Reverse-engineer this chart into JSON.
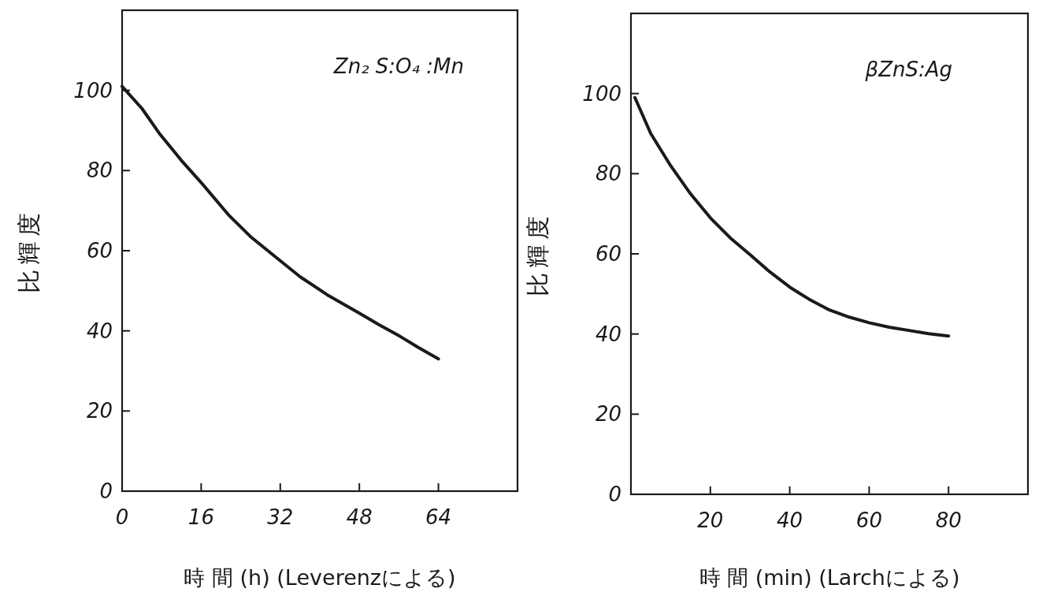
{
  "chart_data": [
    {
      "type": "line",
      "xlabel": "時 間 (h) (Leverenzによる)",
      "ylabel": "比輝度",
      "annotations": [
        "Zn₂ S:O₄ :Mn"
      ],
      "x": [
        0,
        4,
        7.7,
        12,
        16,
        21.5,
        26,
        32,
        36,
        41.5,
        48,
        52,
        56,
        60,
        64
      ],
      "values": [
        101,
        95.5,
        89,
        82.5,
        77,
        69,
        63.5,
        57.5,
        53.5,
        49,
        44.4,
        41.5,
        38.8,
        35.8,
        33
      ],
      "color": "#1a1a1a",
      "xlim": [
        0,
        80
      ],
      "ylim": [
        0,
        120
      ],
      "xticks": [
        0,
        16,
        32,
        48,
        64
      ],
      "yticks": [
        0,
        20,
        40,
        60,
        80,
        100
      ]
    },
    {
      "type": "line",
      "xlabel": "時 間 (min) (Larchによる)",
      "ylabel": "比輝度",
      "annotations": [
        "βZnS:Ag"
      ],
      "x": [
        1,
        5,
        10,
        15,
        20,
        25,
        30,
        35,
        40,
        45,
        50,
        55,
        60,
        65,
        70,
        75,
        80
      ],
      "values": [
        99,
        90,
        82,
        75,
        69,
        64,
        59.8,
        55.5,
        51.7,
        48.6,
        46,
        44.2,
        42.8,
        41.7,
        40.9,
        40.1,
        39.5
      ],
      "color": "#1a1a1a",
      "xlim": [
        0,
        100
      ],
      "ylim": [
        0,
        120
      ],
      "xticks": [
        20,
        40,
        60,
        80
      ],
      "yticks": [
        0,
        20,
        40,
        60,
        80,
        100
      ]
    }
  ]
}
